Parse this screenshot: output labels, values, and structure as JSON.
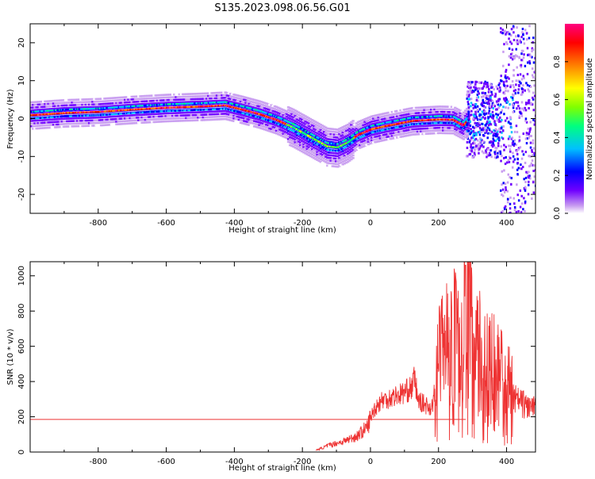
{
  "title": "S135.2023.098.06.56.G01",
  "chart_data": [
    {
      "type": "heatmap",
      "xlabel": "Height of straight line (km)",
      "ylabel": "Frequency (Hz)",
      "xlim": [
        -1000,
        485
      ],
      "ylim": [
        -25,
        25
      ],
      "xticks": [
        -800,
        -600,
        -400,
        -200,
        0,
        200,
        400
      ],
      "yticks": [
        -20,
        -10,
        0,
        10,
        20
      ],
      "colorbar": {
        "label": "Normalized spectral amplitude",
        "range": [
          0.0,
          1.0
        ],
        "ticks": [
          0.0,
          0.2,
          0.4,
          0.6,
          0.8
        ],
        "colormap": [
          "#ffffff",
          "#c89cf0",
          "#7000ff",
          "#0000ff",
          "#00c0ff",
          "#00ff80",
          "#80ff00",
          "#ffff00",
          "#ff8000",
          "#ff0000",
          "#ff0080"
        ]
      },
      "ridge": {
        "x": [
          -1000,
          -900,
          -800,
          -700,
          -600,
          -500,
          -430,
          -380,
          -330,
          -280,
          -230,
          -200,
          -160,
          -130,
          -100,
          -70,
          -40,
          0,
          40,
          80,
          120,
          160,
          200,
          240,
          270,
          290
        ],
        "y": [
          0.7,
          1.3,
          1.6,
          2.2,
          2.7,
          3.0,
          3.3,
          2.2,
          1.0,
          -0.5,
          -2.5,
          -4.0,
          -6.0,
          -7.5,
          -7.8,
          -6.5,
          -4.5,
          -3.0,
          -2.2,
          -1.5,
          -0.8,
          -0.6,
          -0.4,
          -0.5,
          -2.0,
          0.0
        ]
      }
    },
    {
      "type": "line",
      "xlabel": "Height of straight line (km)",
      "ylabel": "SNR (10 * v/v)",
      "xlim": [
        -1000,
        485
      ],
      "ylim": [
        0,
        1080
      ],
      "xticks": [
        -800,
        -600,
        -400,
        -200,
        0,
        200,
        400
      ],
      "yticks": [
        0,
        200,
        400,
        600,
        800,
        1000
      ],
      "color": "#ee3333",
      "reference_y": 185,
      "x": [
        -160,
        -120,
        -80,
        -40,
        -10,
        10,
        30,
        60,
        90,
        120,
        130,
        140,
        180,
        200,
        230,
        250,
        270,
        280,
        300,
        330,
        360,
        400,
        440,
        485
      ],
      "y": [
        10,
        40,
        60,
        90,
        140,
        240,
        290,
        310,
        330,
        360,
        420,
        290,
        250,
        450,
        600,
        550,
        500,
        1060,
        520,
        480,
        420,
        330,
        280,
        240
      ]
    }
  ]
}
